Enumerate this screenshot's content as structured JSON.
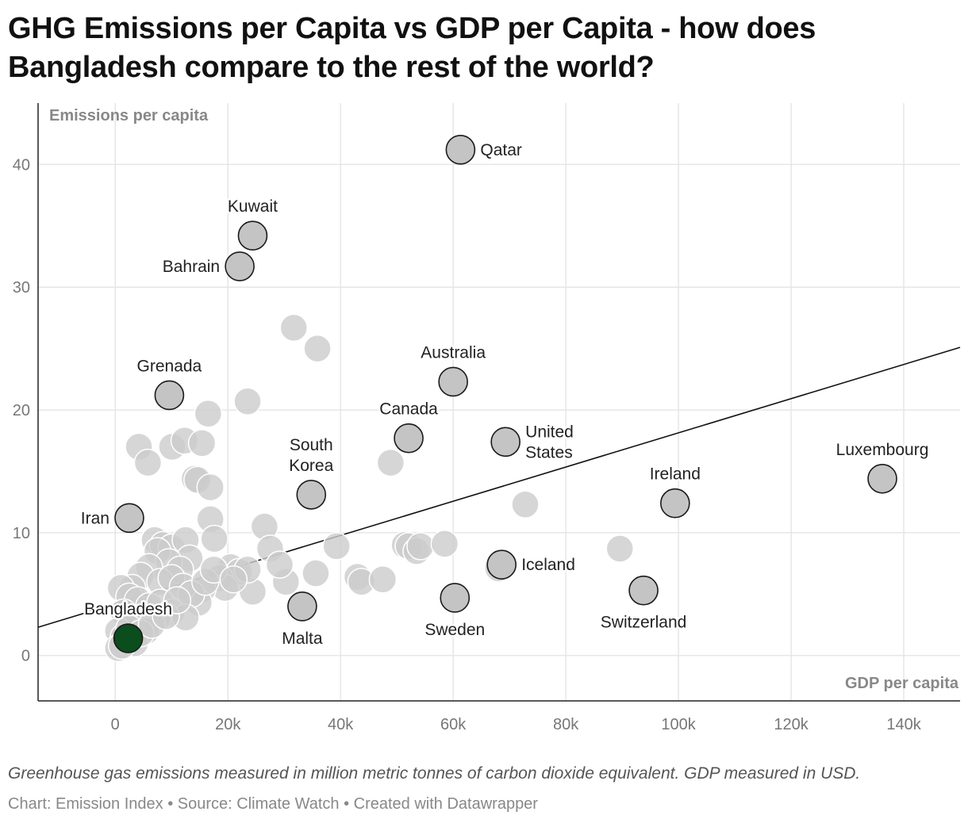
{
  "title": "GHG Emissions per Capita vs GDP per Capita - how does Bangladesh compare to the rest of the world?",
  "notes": "Greenhouse gas emissions measured in million metric tonnes of carbon dioxide equivalent. GDP measured in USD.",
  "credit": "Chart: Emission Index • Source: Climate Watch • Created with Datawrapper",
  "chart_data": {
    "type": "scatter",
    "xlabel": "GDP per capita",
    "ylabel": "Emissions per capita",
    "xlim": [
      -13700,
      150000
    ],
    "ylim": [
      -3.7,
      45
    ],
    "xticks": [
      0,
      20000,
      40000,
      60000,
      80000,
      100000,
      120000,
      140000
    ],
    "xtick_labels": [
      "0",
      "20k",
      "40k",
      "60k",
      "80k",
      "100k",
      "120k",
      "140k"
    ],
    "yticks": [
      0,
      10,
      20,
      30,
      40
    ],
    "ytick_labels": [
      "0",
      "10",
      "20",
      "30",
      "40"
    ],
    "grid": true,
    "colors": {
      "highlight": "#0b4d1c",
      "labeled": "#c4c4c4",
      "other": "#cccccc",
      "trend": "#111111"
    },
    "trendline": {
      "x": [
        -13700,
        150000
      ],
      "y": [
        2.3,
        25.1
      ]
    },
    "labeled_points": [
      {
        "name": "Qatar",
        "x": 61300,
        "y": 41.2,
        "label_position": "right"
      },
      {
        "name": "Kuwait",
        "x": 24400,
        "y": 34.2,
        "label_position": "top"
      },
      {
        "name": "Bahrain",
        "x": 22100,
        "y": 31.7,
        "label_position": "left"
      },
      {
        "name": "Grenada",
        "x": 9600,
        "y": 21.2,
        "label_position": "top"
      },
      {
        "name": "Australia",
        "x": 60000,
        "y": 22.3,
        "label_position": "top"
      },
      {
        "name": "Canada",
        "x": 52100,
        "y": 17.7,
        "label_position": "top"
      },
      {
        "name": "United States",
        "x": 69300,
        "y": 17.4,
        "label_position": "right"
      },
      {
        "name": "South Korea",
        "x": 34800,
        "y": 13.1,
        "label_position": "top"
      },
      {
        "name": "Luxembourg",
        "x": 136200,
        "y": 14.4,
        "label_position": "top"
      },
      {
        "name": "Ireland",
        "x": 99400,
        "y": 12.4,
        "label_position": "top"
      },
      {
        "name": "Iran",
        "x": 2500,
        "y": 11.2,
        "label_position": "left"
      },
      {
        "name": "Iceland",
        "x": 68600,
        "y": 7.4,
        "label_position": "right"
      },
      {
        "name": "Switzerland",
        "x": 93800,
        "y": 5.3,
        "label_position": "bottom"
      },
      {
        "name": "Sweden",
        "x": 60300,
        "y": 4.7,
        "label_position": "bottom"
      },
      {
        "name": "Malta",
        "x": 33200,
        "y": 4.0,
        "label_position": "bottom"
      },
      {
        "name": "Bangladesh",
        "x": 2300,
        "y": 1.4,
        "label_position": "top",
        "highlight": true
      }
    ],
    "other_points": [
      [
        31700,
        26.7
      ],
      [
        35900,
        25.0
      ],
      [
        23500,
        20.7
      ],
      [
        16500,
        19.7
      ],
      [
        4200,
        17.0
      ],
      [
        10100,
        17.0
      ],
      [
        12300,
        17.5
      ],
      [
        15400,
        17.3
      ],
      [
        5800,
        15.7
      ],
      [
        14100,
        14.4
      ],
      [
        14600,
        14.3
      ],
      [
        16900,
        13.7
      ],
      [
        48900,
        15.7
      ],
      [
        72800,
        12.3
      ],
      [
        16900,
        11.1
      ],
      [
        17600,
        9.5
      ],
      [
        26500,
        10.5
      ],
      [
        27500,
        8.7
      ],
      [
        39300,
        8.9
      ],
      [
        51400,
        9.0
      ],
      [
        52100,
        8.9
      ],
      [
        53500,
        8.5
      ],
      [
        54200,
        8.9
      ],
      [
        58500,
        9.1
      ],
      [
        68000,
        7.1
      ],
      [
        89600,
        8.7
      ],
      [
        43000,
        6.4
      ],
      [
        43700,
        6.0
      ],
      [
        47500,
        6.2
      ],
      [
        35600,
        6.7
      ],
      [
        30300,
        6.0
      ],
      [
        24400,
        5.2
      ],
      [
        29200,
        7.4
      ],
      [
        20500,
        7.2
      ],
      [
        22000,
        6.8
      ],
      [
        23500,
        7.0
      ],
      [
        18500,
        6.3
      ],
      [
        19500,
        5.5
      ],
      [
        15500,
        5.4
      ],
      [
        14800,
        4.3
      ],
      [
        7000,
        9.4
      ],
      [
        8500,
        9.0
      ],
      [
        10000,
        8.8
      ],
      [
        12500,
        9.4
      ],
      [
        13200,
        7.9
      ],
      [
        7500,
        8.5
      ],
      [
        9500,
        7.6
      ],
      [
        11500,
        7.0
      ],
      [
        6000,
        7.2
      ],
      [
        4500,
        6.5
      ],
      [
        8000,
        6.0
      ],
      [
        10000,
        6.3
      ],
      [
        12000,
        5.6
      ],
      [
        13500,
        5.0
      ],
      [
        3000,
        5.5
      ],
      [
        1000,
        5.5
      ],
      [
        2500,
        4.8
      ],
      [
        4000,
        4.5
      ],
      [
        6000,
        4.0
      ],
      [
        8000,
        4.3
      ],
      [
        10000,
        3.5
      ],
      [
        12500,
        3.1
      ],
      [
        7500,
        3.0
      ],
      [
        5000,
        3.0
      ],
      [
        1500,
        3.5
      ],
      [
        3000,
        2.8
      ],
      [
        5500,
        2.0
      ],
      [
        500,
        2.0
      ],
      [
        1500,
        1.5
      ],
      [
        3500,
        1.0
      ],
      [
        500,
        0.6
      ],
      [
        1200,
        0.8
      ],
      [
        2500,
        2.2
      ],
      [
        4500,
        1.8
      ],
      [
        6500,
        2.5
      ],
      [
        9000,
        3.2
      ],
      [
        11000,
        4.5
      ],
      [
        16000,
        6.0
      ],
      [
        17500,
        7.0
      ],
      [
        21000,
        6.2
      ]
    ]
  }
}
